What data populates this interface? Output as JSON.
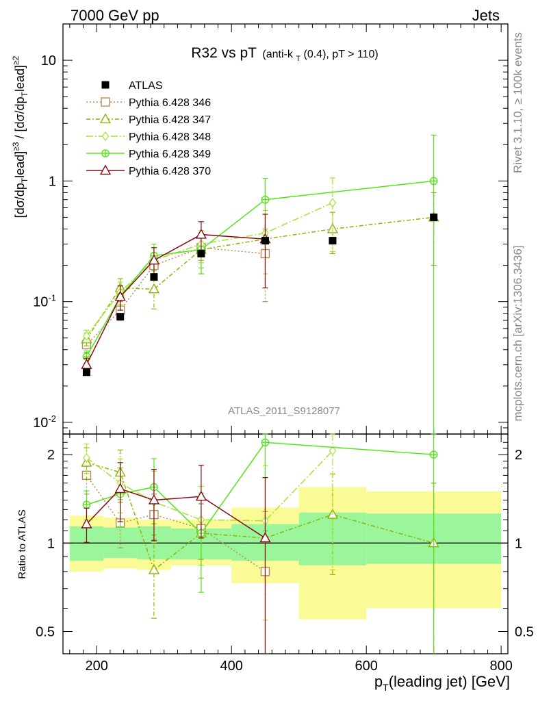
{
  "header": {
    "left": "7000 GeV pp",
    "right": "Jets"
  },
  "title": {
    "main": "R32 vs pT",
    "sub_pre": "(anti-k",
    "sub_sub": "T",
    "sub_post": "(0.4), pT > 110)"
  },
  "side_labels": {
    "rivet": "Rivet 3.1.10, ≥ 100k events",
    "mcplots": "mcplots.cern.ch [arXiv:1306.3436]"
  },
  "analysis_id": "ATLAS_2011_S9128077",
  "axes": {
    "xlabel": "p_T(leading jet) [GeV]",
    "ylabel_main": "[dσ/dp_T^lead]^≥3 / [dσ/dp_T^lead]^≥2",
    "ylabel_ratio": "Ratio to ATLAS"
  },
  "colors": {
    "atlas": "#000000",
    "p346": "#b48c50",
    "p347": "#8cb400",
    "p348": "#a0e632",
    "p349": "#50e614",
    "p370": "#8c0a14",
    "band_inner": "#9bf59b",
    "band_outer": "#fafa96"
  },
  "chart_data": {
    "type": "scatter",
    "x_scale": "linear",
    "y_scale_main": "log",
    "y_scale_ratio": "log",
    "xlim": [
      150,
      810
    ],
    "ylim_main": [
      0.008,
      20
    ],
    "ylim_ratio": [
      0.42,
      2.35
    ],
    "xticks": [
      200,
      400,
      600,
      800
    ],
    "yticks_main": [
      "10^-2",
      "10^-1",
      "1",
      "10"
    ],
    "yticks_ratio": [
      "0.5",
      "1",
      "2"
    ],
    "legend_position": "top-left",
    "data": {
      "name": "ATLAS",
      "x": [
        185,
        235,
        285,
        355,
        450,
        550,
        700
      ],
      "y": [
        0.026,
        0.075,
        0.16,
        0.25,
        0.32,
        0.32,
        0.5
      ],
      "band_edges": [
        160,
        210,
        260,
        310,
        400,
        500,
        600,
        800
      ],
      "band_inner": [
        [
          0.87,
          1.14
        ],
        [
          0.89,
          1.13
        ],
        [
          0.88,
          1.14
        ],
        [
          0.88,
          1.12
        ],
        [
          0.87,
          1.16
        ],
        [
          0.84,
          1.27
        ],
        [
          0.85,
          1.26
        ]
      ],
      "band_outer": [
        [
          0.8,
          1.24
        ],
        [
          0.82,
          1.22
        ],
        [
          0.81,
          1.2
        ],
        [
          0.84,
          1.2
        ],
        [
          0.73,
          1.32
        ],
        [
          0.55,
          1.55
        ],
        [
          0.6,
          1.5
        ]
      ]
    },
    "series": [
      {
        "name": "Pythia 6.428 346",
        "marker": "square",
        "dash": "2,3",
        "x": [
          185,
          235,
          285,
          355,
          450
        ],
        "y": [
          0.044,
          0.085,
          0.2,
          0.28,
          0.25
        ],
        "yerr": [
          0.006,
          0.015,
          0.035,
          0.06,
          0.15
        ],
        "ratio": [
          1.7,
          1.17,
          1.25,
          1.12,
          0.8
        ]
      },
      {
        "name": "Pythia 6.428 347",
        "marker": "triangle",
        "dash": "6,3,2,3",
        "x": [
          185,
          235,
          285,
          355,
          450,
          550,
          700
        ],
        "y": [
          0.049,
          0.13,
          0.127,
          0.27,
          0.33,
          0.4,
          0.5
        ],
        "yerr": [
          0.006,
          0.025,
          0.04,
          0.08,
          0.2,
          0.15,
          0.3
        ],
        "ratio": [
          1.88,
          1.74,
          0.81,
          1.08,
          1.04,
          1.25,
          1.0
        ]
      },
      {
        "name": "Pythia 6.428 348",
        "marker": "diamond",
        "dash": "10,3,2,3",
        "x": [
          185,
          235,
          285,
          355,
          450,
          550
        ],
        "y": [
          0.052,
          0.12,
          0.22,
          0.3,
          0.37,
          0.66
        ],
        "yerr": [
          0.006,
          0.025,
          0.06,
          0.09,
          0.2,
          0.4
        ],
        "ratio": [
          1.95,
          1.6,
          1.38,
          1.2,
          1.19,
          2.06
        ]
      },
      {
        "name": "Pythia 6.428 349",
        "marker": "cross-circle",
        "dash": "",
        "x": [
          185,
          235,
          285,
          355,
          450,
          700
        ],
        "y": [
          0.035,
          0.11,
          0.24,
          0.27,
          0.7,
          1.0
        ],
        "yerr": [
          0.004,
          0.025,
          0.06,
          0.1,
          0.35,
          1.4
        ],
        "ratio": [
          1.35,
          1.47,
          1.55,
          1.08,
          2.2,
          2.0
        ]
      },
      {
        "name": "Pythia 6.428 370",
        "marker": "triangle",
        "dash": "",
        "x": [
          185,
          235,
          285,
          355,
          450
        ],
        "y": [
          0.03,
          0.11,
          0.22,
          0.36,
          0.33
        ],
        "yerr": [
          0.004,
          0.025,
          0.06,
          0.1,
          0.2
        ],
        "ratio": [
          1.16,
          1.53,
          1.4,
          1.44,
          1.04
        ]
      }
    ]
  }
}
